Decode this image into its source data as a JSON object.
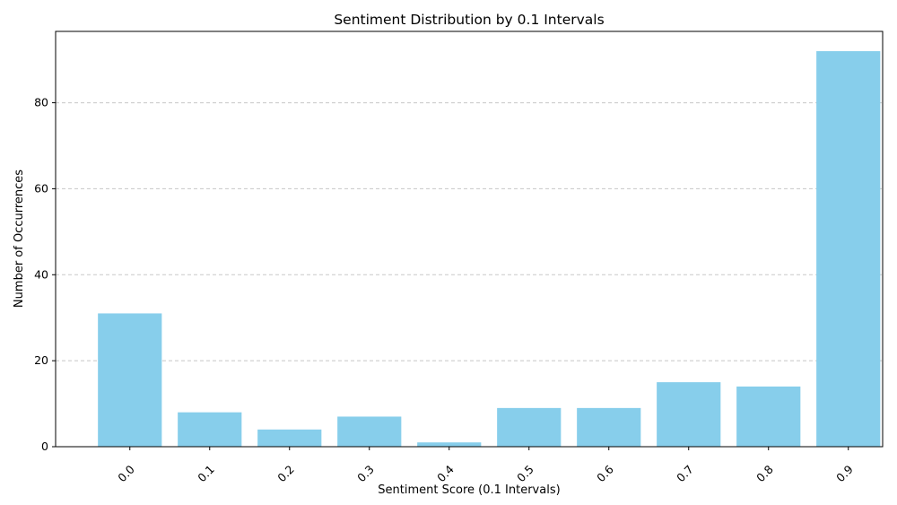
{
  "chart_data": {
    "type": "bar",
    "title": "Sentiment Distribution by 0.1 Intervals",
    "xlabel": "Sentiment Score (0.1 Intervals)",
    "ylabel": "Number of Occurrences",
    "categories": [
      "0.0",
      "0.1",
      "0.2",
      "0.3",
      "0.4",
      "0.5",
      "0.6",
      "0.7",
      "0.8",
      "0.9"
    ],
    "values": [
      31,
      8,
      4,
      7,
      1,
      9,
      9,
      15,
      14,
      92
    ],
    "yticks": [
      0,
      20,
      40,
      60,
      80
    ],
    "ylim": [
      0,
      96.6
    ],
    "grid": "y-dashed",
    "bar_color": "#87CEEB",
    "grid_color": "#c8c8c8",
    "xtick_rotation": 45
  }
}
